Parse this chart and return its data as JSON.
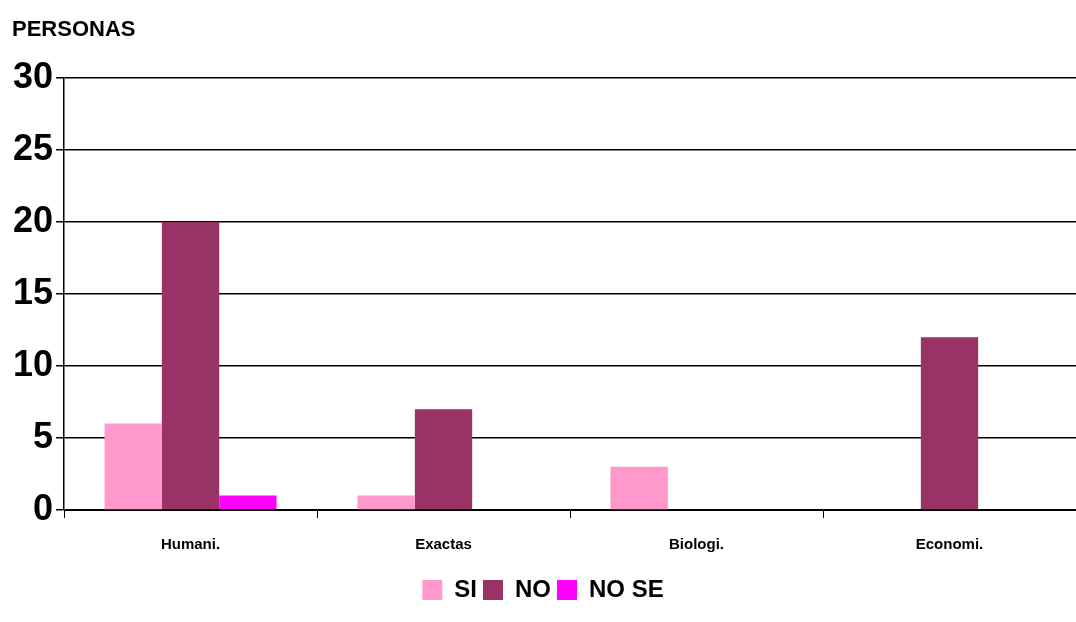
{
  "chart_data": {
    "type": "bar",
    "ylabel": "PERSONAS",
    "categories": [
      "Humani.",
      "Exactas",
      "Biologi.",
      "Economi."
    ],
    "series": [
      {
        "name": "SI",
        "color": "#ff99cc",
        "values": [
          6,
          1,
          3,
          0
        ]
      },
      {
        "name": "NO",
        "color": "#993366",
        "values": [
          20,
          7,
          0,
          12
        ]
      },
      {
        "name": "NO SE",
        "color": "#ff00ff",
        "values": [
          1,
          0,
          0,
          0
        ]
      }
    ],
    "ylim": [
      0,
      30
    ],
    "yticks": [
      0,
      5,
      10,
      15,
      20,
      25,
      30
    ],
    "grid": "y",
    "legend": "bottom"
  }
}
